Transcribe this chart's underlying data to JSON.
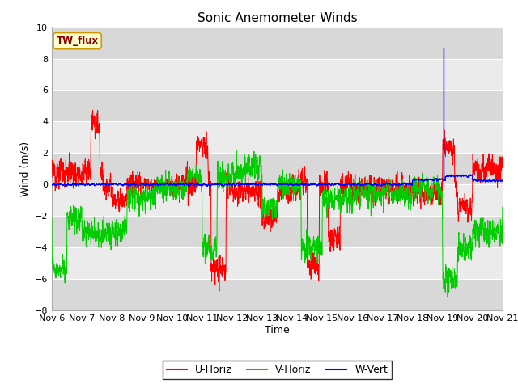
{
  "title": "Sonic Anemometer Winds",
  "ylabel": "Wind (m/s)",
  "xlabel": "Time",
  "ylim": [
    -8,
    10
  ],
  "xlim": [
    0,
    15
  ],
  "x_tick_labels": [
    "Nov 6",
    "Nov 7",
    "Nov 8",
    "Nov 9",
    "Nov 10",
    "Nov 11",
    "Nov 12",
    "Nov 13",
    "Nov 14",
    "Nov 15",
    "Nov 16",
    "Nov 17",
    "Nov 18",
    "Nov 19",
    "Nov 20",
    "Nov 21"
  ],
  "x_tick_positions": [
    0,
    1,
    2,
    3,
    4,
    5,
    6,
    7,
    8,
    9,
    10,
    11,
    12,
    13,
    14,
    15
  ],
  "yticks": [
    -8,
    -6,
    -4,
    -2,
    0,
    2,
    4,
    6,
    8,
    10
  ],
  "line_colors": {
    "U-Horiz": "#ff0000",
    "V-Horiz": "#00cc00",
    "W-Vert": "#0000ff"
  },
  "line_width": 0.7,
  "background_color": "#ffffff",
  "plot_background_light": "#ebebeb",
  "plot_background_dark": "#d8d8d8",
  "band_color_light": "#ebebeb",
  "band_color_dark": "#d8d8d8",
  "grid_color": "#ffffff",
  "station_label": "TW_flux",
  "legend_entries": [
    "U-Horiz",
    "V-Horiz",
    "W-Vert"
  ],
  "title_fontsize": 11,
  "label_fontsize": 9,
  "tick_fontsize": 8
}
